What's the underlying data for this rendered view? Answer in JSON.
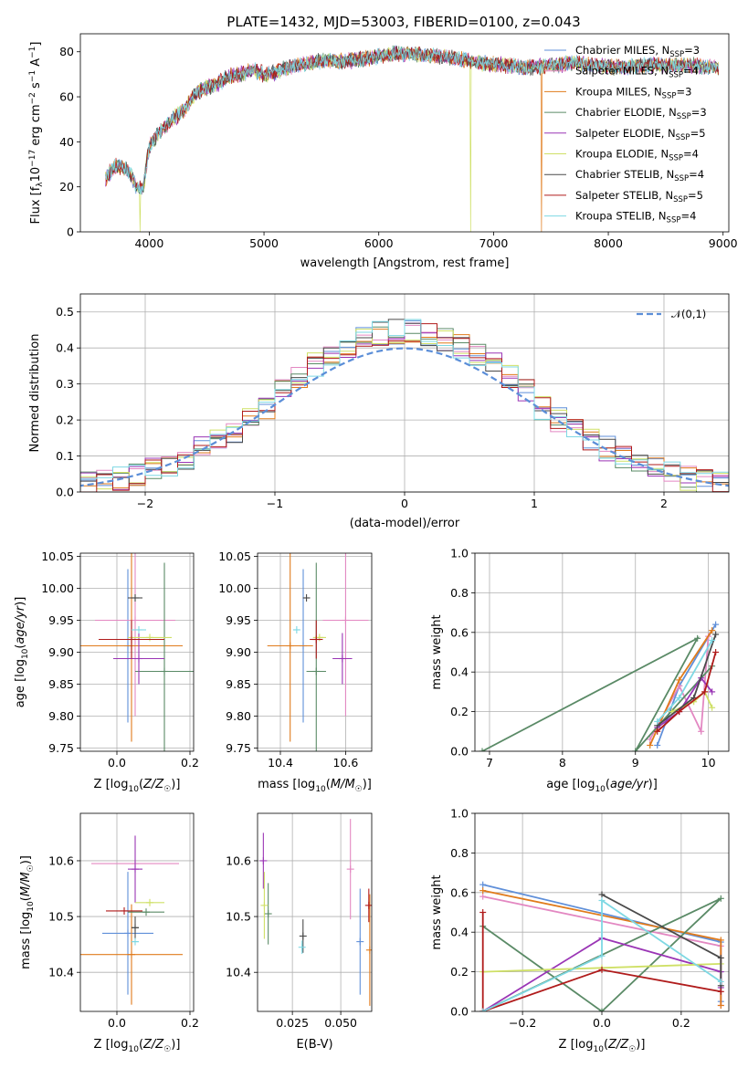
{
  "title": "PLATE=1432, MJD=53003, FIBERID=0100, z=0.043",
  "colors": {
    "Chabrier MILES": "#5f8fd9",
    "Salpeter MILES": "#e388c2",
    "Kroupa MILES": "#e07b1c",
    "Chabrier ELODIE": "#5a8a66",
    "Salpeter ELODIE": "#9a35b5",
    "Kroupa ELODIE": "#cfe066",
    "Chabrier STELIB": "#4a4a4a",
    "Salpeter STELIB": "#b01b1b",
    "Kroupa STELIB": "#7ed8e3"
  },
  "legend_spectrum": [
    {
      "name": "Chabrier MILES",
      "prefix": "Chabrier MILES, N",
      "n": "3"
    },
    {
      "name": "Salpeter MILES",
      "prefix": "Salpeter MILES, N",
      "n": "4"
    },
    {
      "name": "Kroupa MILES",
      "prefix": "Kroupa MILES, N",
      "n": "3"
    },
    {
      "name": "Chabrier ELODIE",
      "prefix": "Chabrier ELODIE, N",
      "n": "3"
    },
    {
      "name": "Salpeter ELODIE",
      "prefix": "Salpeter ELODIE, N",
      "n": "5"
    },
    {
      "name": "Kroupa ELODIE",
      "prefix": "Kroupa ELODIE, N",
      "n": "4"
    },
    {
      "name": "Chabrier STELIB",
      "prefix": "Chabrier STELIB, N",
      "n": "4"
    },
    {
      "name": "Salpeter STELIB",
      "prefix": "Salpeter STELIB, N",
      "n": "5"
    },
    {
      "name": "Kroupa STELIB",
      "prefix": "Kroupa STELIB, N",
      "n": "4"
    }
  ],
  "legend_sub": "SSP",
  "legend_norm": "𝒩(0,1)",
  "chart_data": [
    {
      "id": "spectrum",
      "type": "line",
      "xlabel": "wavelength [Angstrom, rest frame]",
      "ylabel": "Flux [f_λ 10^-17 erg cm^-2 s^-1 A^-1]",
      "xlim": [
        3400,
        9050
      ],
      "ylim": [
        0,
        88
      ],
      "xticks": [
        4000,
        5000,
        6000,
        7000,
        8000,
        9000
      ],
      "yticks": [
        0,
        20,
        40,
        60,
        80
      ],
      "grid": false,
      "legend": "right",
      "continuum": {
        "x": [
          3620,
          3700,
          3800,
          3850,
          3900,
          3950,
          4000,
          4100,
          4200,
          4300,
          4400,
          4500,
          4600,
          4700,
          4800,
          4900,
          5000,
          5100,
          5200,
          5300,
          5500,
          5700,
          5900,
          6100,
          6300,
          6500,
          6700,
          6900,
          7100,
          7300,
          7500,
          7700,
          7900,
          8100,
          8300,
          8500,
          8700,
          8900
        ],
        "y": [
          24,
          29,
          28,
          24,
          19,
          20,
          38,
          45,
          50,
          54,
          61,
          64,
          66,
          69,
          70,
          72,
          70,
          71,
          73,
          74,
          76,
          76,
          77,
          79,
          79,
          78,
          77,
          75,
          74,
          73,
          74,
          75,
          74,
          73,
          74,
          74,
          74,
          73
        ]
      },
      "dropouts": [
        {
          "series": "Kroupa ELODIE",
          "x": 3920
        },
        {
          "series": "Kroupa ELODIE",
          "x": 6800
        },
        {
          "series": "Kroupa MILES",
          "x": 7420
        }
      ]
    },
    {
      "id": "residuals",
      "type": "histogram",
      "xlabel": "(data-model)/error",
      "ylabel": "Normed distribution",
      "xlim": [
        -2.5,
        2.5
      ],
      "ylim": [
        0,
        0.55
      ],
      "xticks": [
        -2,
        -1,
        0,
        1,
        2
      ],
      "yticks": [
        0.0,
        0.1,
        0.2,
        0.3,
        0.4,
        0.5
      ],
      "grid": true,
      "legend": "top-right",
      "bin_width": 0.125,
      "reference": {
        "name": "𝒩(0,1)",
        "mean": 0,
        "sigma": 1
      }
    },
    {
      "id": "age_vs_Z",
      "type": "errorbar",
      "xlabel": "Z [log10(Z/Z☉)]",
      "ylabel": "age [log10(age/yr)]",
      "xlim": [
        -0.1,
        0.21
      ],
      "ylim": [
        9.745,
        10.055
      ],
      "xticks": [
        0.0,
        0.2
      ],
      "yticks": [
        9.75,
        9.8,
        9.85,
        9.9,
        9.95,
        10.0,
        10.05
      ],
      "grid": true,
      "points": [
        {
          "series": "Chabrier MILES",
          "x": 0.03,
          "xerr": 0.0,
          "y": 9.91,
          "yerr": 0.12
        },
        {
          "series": "Salpeter MILES",
          "x": 0.05,
          "xerr": 0.11,
          "y": 9.95,
          "yerr": 0.15
        },
        {
          "series": "Kroupa MILES",
          "x": 0.04,
          "xerr": 0.14,
          "y": 9.91,
          "yerr": 0.15
        },
        {
          "series": "Chabrier ELODIE",
          "x": 0.13,
          "xerr": 0.08,
          "y": 9.87,
          "yerr": 0.17
        },
        {
          "series": "Salpeter ELODIE",
          "x": 0.06,
          "xerr": 0.07,
          "y": 9.89,
          "yerr": 0.04
        },
        {
          "series": "Kroupa ELODIE",
          "x": 0.09,
          "xerr": 0.06,
          "y": 9.923,
          "yerr": 0.0
        },
        {
          "series": "Chabrier STELIB",
          "x": 0.05,
          "xerr": 0.02,
          "y": 9.985,
          "yerr": 0.0
        },
        {
          "series": "Salpeter STELIB",
          "x": 0.04,
          "xerr": 0.09,
          "y": 9.92,
          "yerr": 0.03
        },
        {
          "series": "Kroupa STELIB",
          "x": 0.06,
          "xerr": 0.02,
          "y": 9.935,
          "yerr": 0.0
        }
      ]
    },
    {
      "id": "age_vs_mass",
      "type": "errorbar",
      "xlabel": "mass [log10(M/M☉)]",
      "ylabel": "",
      "xlim": [
        10.33,
        10.68
      ],
      "ylim": [
        9.745,
        10.055
      ],
      "xticks": [
        10.4,
        10.6
      ],
      "yticks": [
        9.75,
        9.8,
        9.85,
        9.9,
        9.95,
        10.0,
        10.05
      ],
      "grid": true,
      "points": [
        {
          "series": "Chabrier MILES",
          "x": 10.47,
          "xerr": 0.0,
          "y": 9.91,
          "yerr": 0.12
        },
        {
          "series": "Salpeter MILES",
          "x": 10.6,
          "xerr": 0.07,
          "y": 9.95,
          "yerr": 0.15
        },
        {
          "series": "Kroupa MILES",
          "x": 10.43,
          "xerr": 0.07,
          "y": 9.91,
          "yerr": 0.15
        },
        {
          "series": "Chabrier ELODIE",
          "x": 10.51,
          "xerr": 0.03,
          "y": 9.87,
          "yerr": 0.17
        },
        {
          "series": "Salpeter ELODIE",
          "x": 10.59,
          "xerr": 0.03,
          "y": 9.89,
          "yerr": 0.04
        },
        {
          "series": "Kroupa ELODIE",
          "x": 10.52,
          "xerr": 0.02,
          "y": 9.923,
          "yerr": 0.0
        },
        {
          "series": "Chabrier STELIB",
          "x": 10.48,
          "xerr": 0.01,
          "y": 9.985,
          "yerr": 0.0
        },
        {
          "series": "Salpeter STELIB",
          "x": 10.51,
          "xerr": 0.02,
          "y": 9.92,
          "yerr": 0.03
        },
        {
          "series": "Kroupa STELIB",
          "x": 10.45,
          "xerr": 0.01,
          "y": 9.935,
          "yerr": 0.0
        }
      ]
    },
    {
      "id": "weights_vs_age",
      "type": "line",
      "xlabel": "age [log10(age/yr)]",
      "ylabel": "mass weight",
      "xlim": [
        6.8,
        10.28
      ],
      "ylim": [
        0,
        1.0
      ],
      "xticks": [
        7,
        8,
        9,
        10
      ],
      "yticks": [
        0.0,
        0.2,
        0.4,
        0.6,
        0.8,
        1.0
      ],
      "grid": true,
      "series": [
        {
          "name": "Chabrier MILES",
          "x": [
            9.3,
            9.6,
            10.1
          ],
          "y": [
            0.03,
            0.33,
            0.64
          ]
        },
        {
          "name": "Salpeter MILES",
          "x": [
            9.2,
            9.6,
            9.9,
            10.0
          ],
          "y": [
            0.06,
            0.33,
            0.1,
            0.58
          ]
        },
        {
          "name": "Kroupa MILES",
          "x": [
            9.2,
            9.6,
            10.05
          ],
          "y": [
            0.03,
            0.36,
            0.61
          ]
        },
        {
          "name": "Chabrier ELODIE",
          "x": [
            6.9,
            9.85,
            9.0,
            10.05
          ],
          "y": [
            0.0,
            0.57,
            0.0,
            0.43
          ]
        },
        {
          "name": "Salpeter ELODIE",
          "x": [
            9.3,
            9.6,
            9.9,
            10.05
          ],
          "y": [
            0.12,
            0.2,
            0.37,
            0.3
          ]
        },
        {
          "name": "Kroupa ELODIE",
          "x": [
            9.5,
            9.8,
            9.95,
            10.05
          ],
          "y": [
            0.2,
            0.25,
            0.3,
            0.22
          ]
        },
        {
          "name": "Chabrier STELIB",
          "x": [
            9.3,
            9.8,
            10.1
          ],
          "y": [
            0.13,
            0.27,
            0.59
          ]
        },
        {
          "name": "Salpeter STELIB",
          "x": [
            9.3,
            9.6,
            9.95,
            10.1
          ],
          "y": [
            0.1,
            0.2,
            0.3,
            0.5
          ]
        },
        {
          "name": "Kroupa STELIB",
          "x": [
            9.3,
            9.6,
            10.05
          ],
          "y": [
            0.15,
            0.27,
            0.56
          ]
        }
      ]
    },
    {
      "id": "mass_vs_Z",
      "type": "errorbar",
      "xlabel": "Z [log10(Z/Z☉)]",
      "ylabel": "mass [log10(M/M☉)]",
      "xlim": [
        -0.1,
        0.21
      ],
      "ylim": [
        10.33,
        10.685
      ],
      "xticks": [
        0.0,
        0.2
      ],
      "yticks": [
        10.4,
        10.5,
        10.6
      ],
      "grid": true,
      "points": [
        {
          "series": "Chabrier MILES",
          "x": 0.03,
          "xerr": 0.07,
          "y": 10.47,
          "yerr": 0.11
        },
        {
          "series": "Salpeter MILES",
          "x": 0.05,
          "xerr": 0.12,
          "y": 10.595,
          "yerr": 0.0
        },
        {
          "series": "Kroupa MILES",
          "x": 0.04,
          "xerr": 0.14,
          "y": 10.432,
          "yerr": 0.09
        },
        {
          "series": "Chabrier ELODIE",
          "x": 0.08,
          "xerr": 0.05,
          "y": 10.508,
          "yerr": 0.0
        },
        {
          "series": "Salpeter ELODIE",
          "x": 0.05,
          "xerr": 0.02,
          "y": 10.585,
          "yerr": 0.06
        },
        {
          "series": "Kroupa ELODIE",
          "x": 0.09,
          "xerr": 0.04,
          "y": 10.525,
          "yerr": 0.0
        },
        {
          "series": "Chabrier STELIB",
          "x": 0.05,
          "xerr": 0.01,
          "y": 10.48,
          "yerr": 0.02
        },
        {
          "series": "Salpeter STELIB",
          "x": 0.02,
          "xerr": 0.05,
          "y": 10.51,
          "yerr": 0.0
        },
        {
          "series": "Kroupa STELIB",
          "x": 0.05,
          "xerr": 0.01,
          "y": 10.455,
          "yerr": 0.0
        }
      ]
    },
    {
      "id": "mass_vs_ebv",
      "type": "errorbar",
      "xlabel": "E(B-V)",
      "ylabel": "",
      "xlim": [
        0.007,
        0.066
      ],
      "ylim": [
        10.33,
        10.685
      ],
      "xticks": [
        0.025,
        0.05
      ],
      "yticks": [
        10.4,
        10.5,
        10.6
      ],
      "grid": true,
      "points": [
        {
          "series": "Chabrier MILES",
          "x": 0.06,
          "xerr": 0.0,
          "y": 10.455,
          "yerr": 0.095
        },
        {
          "series": "Salpeter MILES",
          "x": 0.055,
          "xerr": 0.0,
          "y": 10.585,
          "yerr": 0.09
        },
        {
          "series": "Kroupa MILES",
          "x": 0.065,
          "xerr": 0.0,
          "y": 10.44,
          "yerr": 0.1
        },
        {
          "series": "Chabrier ELODIE",
          "x": 0.0125,
          "xerr": 0.0,
          "y": 10.505,
          "yerr": 0.055
        },
        {
          "series": "Salpeter ELODIE",
          "x": 0.01,
          "xerr": 0.0,
          "y": 10.6,
          "yerr": 0.05
        },
        {
          "series": "Kroupa ELODIE",
          "x": 0.0105,
          "xerr": 0.0,
          "y": 10.52,
          "yerr": 0.06
        },
        {
          "series": "Chabrier STELIB",
          "x": 0.0305,
          "xerr": 0.0,
          "y": 10.465,
          "yerr": 0.03
        },
        {
          "series": "Salpeter STELIB",
          "x": 0.0645,
          "xerr": 0.0,
          "y": 10.52,
          "yerr": 0.03
        },
        {
          "series": "Kroupa STELIB",
          "x": 0.03,
          "xerr": 0.0,
          "y": 10.445,
          "yerr": 0.012
        }
      ]
    },
    {
      "id": "weights_vs_Z",
      "type": "line",
      "xlabel": "Z [log10(Z/Z☉)]",
      "ylabel": "mass weight",
      "xlim": [
        -0.32,
        0.32
      ],
      "ylim": [
        0,
        1.0
      ],
      "xticks": [
        -0.2,
        0.0,
        0.2
      ],
      "yticks": [
        0.0,
        0.2,
        0.4,
        0.6,
        0.8,
        1.0
      ],
      "grid": true,
      "series": [
        {
          "name": "Chabrier MILES",
          "x": [
            -0.3,
            0.3,
            0.3
          ],
          "y": [
            0.64,
            0.35,
            0.05
          ]
        },
        {
          "name": "Salpeter MILES",
          "x": [
            -0.3,
            0.3,
            0.3
          ],
          "y": [
            0.58,
            0.33,
            0.03
          ]
        },
        {
          "name": "Kroupa MILES",
          "x": [
            -0.3,
            0.3,
            0.3
          ],
          "y": [
            0.61,
            0.36,
            0.03
          ]
        },
        {
          "name": "Chabrier ELODIE",
          "x": [
            -0.3,
            0.0,
            0.3,
            -0.3
          ],
          "y": [
            0.43,
            0.0,
            0.57,
            0.0
          ]
        },
        {
          "name": "Salpeter ELODIE",
          "x": [
            -0.3,
            0.0,
            0.3,
            0.3
          ],
          "y": [
            0.0,
            0.37,
            0.2,
            0.12
          ]
        },
        {
          "name": "Kroupa ELODIE",
          "x": [
            -0.3,
            0.0,
            0.3
          ],
          "y": [
            0.2,
            0.22,
            0.24
          ]
        },
        {
          "name": "Chabrier STELIB",
          "x": [
            0.0,
            0.3,
            0.3
          ],
          "y": [
            0.59,
            0.27,
            0.13
          ]
        },
        {
          "name": "Salpeter STELIB",
          "x": [
            -0.3,
            -0.3,
            0.0,
            0.3
          ],
          "y": [
            0.5,
            0.0,
            0.21,
            0.1
          ]
        },
        {
          "name": "Kroupa STELIB",
          "x": [
            -0.3,
            0.0,
            0.0,
            0.3
          ],
          "y": [
            0.0,
            0.28,
            0.56,
            0.15
          ]
        }
      ]
    }
  ]
}
